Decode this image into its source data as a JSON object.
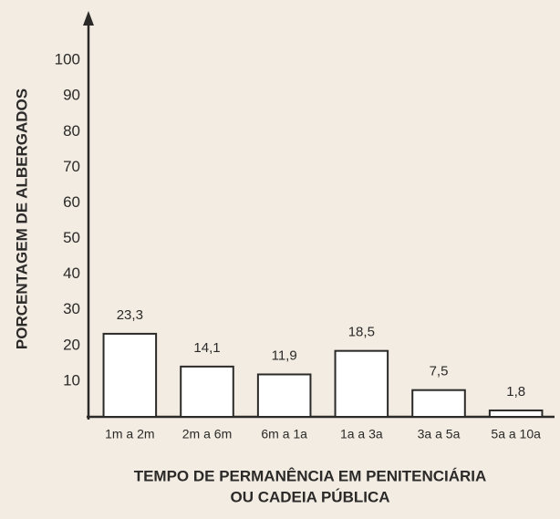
{
  "chart_data": {
    "type": "bar",
    "ylabel": "PORCENTAGEM DE ALBERGADOS",
    "xlabel": [
      "TEMPO DE PERMANÊNCIA EM PENITENCIÁRIA",
      "OU CADEIA PÚBLICA"
    ],
    "categories": [
      "1m a 2m",
      "2m a 6m",
      "6m a 1a",
      "1a a 3a",
      "3a a 5a",
      "5a a 10a"
    ],
    "values": [
      23.3,
      14.1,
      11.9,
      18.5,
      7.5,
      1.8
    ],
    "value_labels": [
      "23,3",
      "14,1",
      "11,9",
      "18,5",
      "7,5",
      "1,8"
    ],
    "color": "#ffffff",
    "ylim": [
      0,
      110
    ],
    "yticks": [
      10,
      20,
      30,
      40,
      50,
      60,
      70,
      80,
      90,
      100
    ]
  }
}
